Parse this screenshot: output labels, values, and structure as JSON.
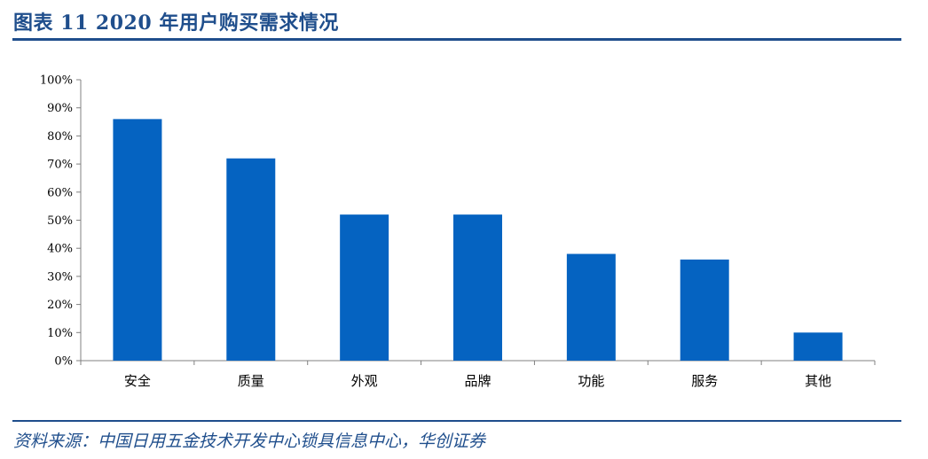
{
  "header": {
    "title": "图表 11   2020 年用户购买需求情况"
  },
  "footer": {
    "source": "资料来源：中国日用五金技术开发中心锁具信息中心，华创证券"
  },
  "colors": {
    "bar": "#0563C1",
    "accent": "#1f4e8c"
  },
  "chart_data": {
    "type": "bar",
    "categories": [
      "安全",
      "质量",
      "外观",
      "品牌",
      "功能",
      "服务",
      "其他"
    ],
    "values": [
      86,
      72,
      52,
      52,
      38,
      36,
      10
    ],
    "y_ticks": [
      "0%",
      "10%",
      "20%",
      "30%",
      "40%",
      "50%",
      "60%",
      "70%",
      "80%",
      "90%",
      "100%"
    ],
    "ylim": [
      0,
      100
    ],
    "y_unit": "%",
    "grid": false,
    "legend": "none"
  }
}
